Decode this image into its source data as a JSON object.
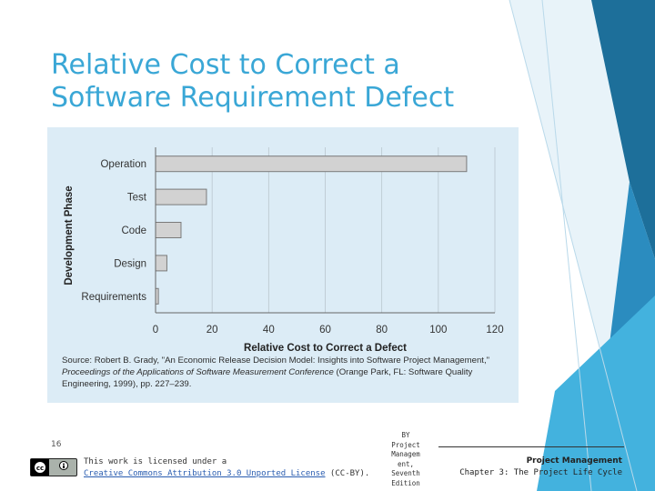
{
  "slide": {
    "title_line1": "Relative Cost to Correct a",
    "title_line2": "Software Requirement Defect",
    "number": "16"
  },
  "chart_data": {
    "type": "bar",
    "orientation": "horizontal",
    "categories": [
      "Operation",
      "Test",
      "Code",
      "Design",
      "Requirements"
    ],
    "values": [
      110,
      18,
      9,
      4,
      1
    ],
    "xlabel": "Relative Cost to Correct a Defect",
    "ylabel": "Development Phase",
    "xlim": [
      0,
      120
    ],
    "xticks": [
      0,
      20,
      40,
      60,
      80,
      100,
      120
    ],
    "grid": true,
    "bar_color": "#d2d2d2",
    "bar_edge_color": "#7a7a7a",
    "panel_color": "#dcecf6"
  },
  "source": {
    "line1": "Source: Robert B. Grady, \"An Economic Release Decision Model: Insights into Software Project Management,\"",
    "line2_italic": "Proceedings of the Applications of Software Measurement Conference",
    "line2_rest": " (Orange Park, FL: Software Quality",
    "line3": "Engineering, 1999), pp. 227–239."
  },
  "footer": {
    "license_text": "This work is licensed under a",
    "license_link": "Creative Commons Attribution 3.0 Unported License",
    "license_suffix": " (CC-BY).",
    "book_line1": "BY",
    "book_line2": "Project",
    "book_line3": "Managem",
    "book_line4": "ent,",
    "book_line5": "Seventh",
    "book_line6": "Edition",
    "course_title": "Project Management",
    "course_chapter": "Chapter 3: The Project Life Cycle"
  },
  "colors": {
    "title": "#3aa7d6",
    "accent_dark": "#1d6f9a",
    "accent_mid": "#2b8cbf",
    "accent_light": "#43b2de"
  }
}
